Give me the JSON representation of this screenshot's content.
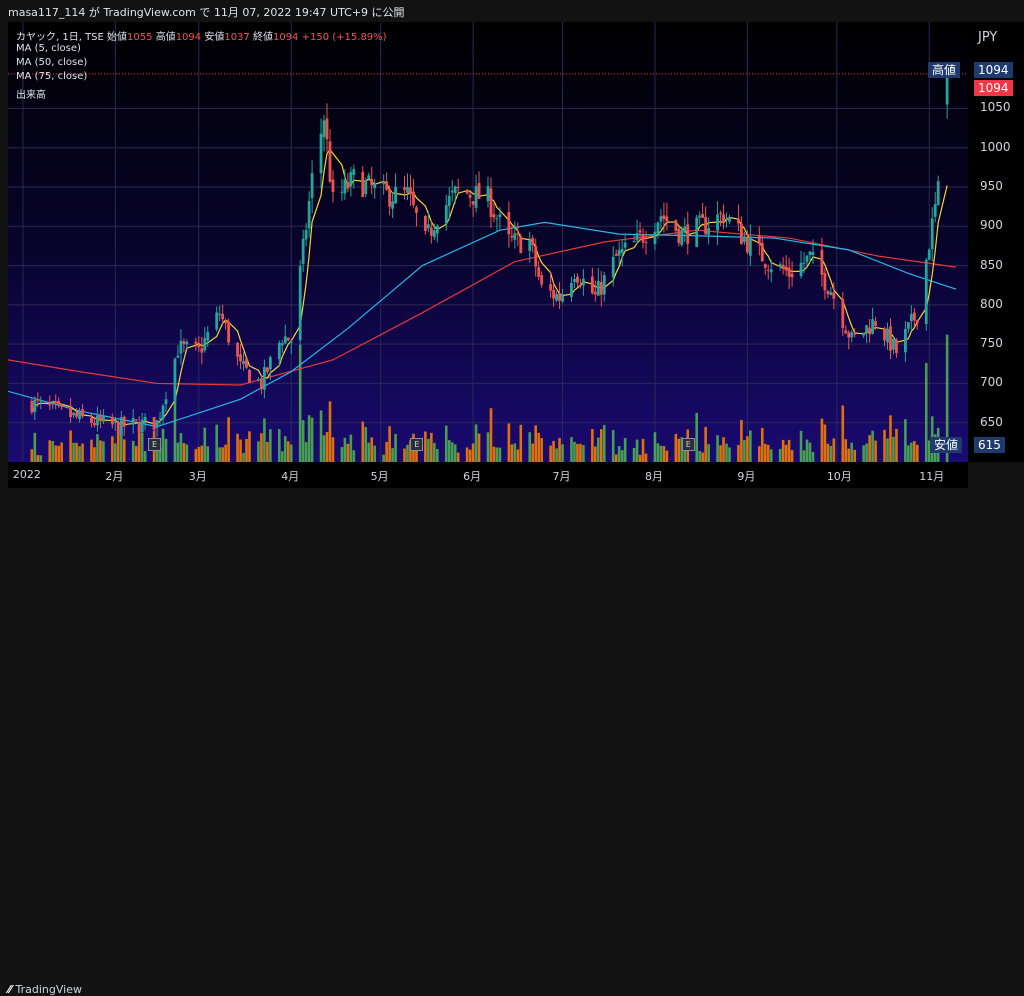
{
  "header": {
    "caption": "masa117_114 が TradingView.com で 11月 07, 2022 19:47 UTC+9 に公開"
  },
  "legend": {
    "symbol": "カヤック, 1日, TSE",
    "open_label": "始値",
    "open": "1055",
    "high_label": "高値",
    "high": "1094",
    "low_label": "安値",
    "low": "1037",
    "close_label": "終値",
    "close": "1094",
    "change": "+150 (+15.89%)",
    "ma5": "MA (5, close)",
    "ma50": "MA (50, close)",
    "ma75": "MA (75, close)",
    "volume": "出来高"
  },
  "currency": "JPY",
  "tags": {
    "high_label": "高値",
    "high_value": "1094",
    "last_value": "1094",
    "low_label": "安値",
    "low_value": "615"
  },
  "footer": {
    "brand": "TradingView"
  },
  "colors": {
    "up": "#26a69a",
    "down": "#ef5350",
    "ma5": "#f5d631",
    "ma50": "#29b6e8",
    "ma75": "#e53935",
    "vol_up": "#4caf50",
    "vol_down": "#f57c00",
    "price_tag": "#f23645",
    "label_tag": "#1f3a6d"
  },
  "chart_data": {
    "type": "candlestick",
    "title": "カヤック, 1日, TSE",
    "y_axis": {
      "ticks": [
        650,
        700,
        750,
        800,
        850,
        900,
        950,
        1000,
        1050
      ],
      "ylim": [
        600,
        1160
      ]
    },
    "x_axis": {
      "tick_labels": [
        "2022",
        "2月",
        "3月",
        "4月",
        "5月",
        "6月",
        "7月",
        "8月",
        "9月",
        "10月",
        "11月"
      ],
      "range": [
        "2021-12-27",
        "2022-11-14"
      ]
    },
    "tick_dates": [
      "2022-01-01",
      "2022-02-01",
      "2022-03-01",
      "2022-04-01",
      "2022-05-01",
      "2022-06-01",
      "2022-07-01",
      "2022-08-01",
      "2022-09-01",
      "2022-10-01",
      "2022-11-01"
    ],
    "earnings_dates": [
      "2022-02-14",
      "2022-05-13",
      "2022-08-12"
    ],
    "earnings_label": "E",
    "close_keypoints": [
      [
        "2022-01-04",
        675
      ],
      [
        "2022-01-20",
        655
      ],
      [
        "2022-02-01",
        645
      ],
      [
        "2022-02-15",
        650
      ],
      [
        "2022-02-22",
        745
      ],
      [
        "2022-03-01",
        740
      ],
      [
        "2022-03-08",
        790
      ],
      [
        "2022-03-15",
        720
      ],
      [
        "2022-03-22",
        700
      ],
      [
        "2022-03-29",
        760
      ],
      [
        "2022-04-01",
        755
      ],
      [
        "2022-04-05",
        870
      ],
      [
        "2022-04-08",
        960
      ],
      [
        "2022-04-12",
        1040
      ],
      [
        "2022-04-15",
        930
      ],
      [
        "2022-04-22",
        960
      ],
      [
        "2022-05-02",
        940
      ],
      [
        "2022-05-10",
        940
      ],
      [
        "2022-05-16",
        880
      ],
      [
        "2022-05-20",
        915
      ],
      [
        "2022-05-27",
        945
      ],
      [
        "2022-06-06",
        935
      ],
      [
        "2022-06-13",
        880
      ],
      [
        "2022-06-20",
        880
      ],
      [
        "2022-06-24",
        820
      ],
      [
        "2022-06-30",
        810
      ],
      [
        "2022-07-05",
        845
      ],
      [
        "2022-07-12",
        810
      ],
      [
        "2022-07-19",
        860
      ],
      [
        "2022-07-26",
        880
      ],
      [
        "2022-08-03",
        915
      ],
      [
        "2022-08-10",
        890
      ],
      [
        "2022-08-17",
        900
      ],
      [
        "2022-08-24",
        915
      ],
      [
        "2022-09-01",
        880
      ],
      [
        "2022-09-08",
        855
      ],
      [
        "2022-09-15",
        840
      ],
      [
        "2022-09-22",
        860
      ],
      [
        "2022-09-29",
        820
      ],
      [
        "2022-10-06",
        755
      ],
      [
        "2022-10-14",
        780
      ],
      [
        "2022-10-21",
        740
      ],
      [
        "2022-10-28",
        790
      ],
      [
        "2022-11-01",
        880
      ],
      [
        "2022-11-04",
        944
      ],
      [
        "2022-11-07",
        1094
      ]
    ],
    "ma50_keypoints": [
      [
        "2021-12-27",
        690
      ],
      [
        "2022-01-20",
        665
      ],
      [
        "2022-02-15",
        645
      ],
      [
        "2022-03-15",
        680
      ],
      [
        "2022-04-01",
        715
      ],
      [
        "2022-04-20",
        770
      ],
      [
        "2022-05-15",
        850
      ],
      [
        "2022-06-10",
        895
      ],
      [
        "2022-06-25",
        905
      ],
      [
        "2022-07-20",
        890
      ],
      [
        "2022-08-15",
        888
      ],
      [
        "2022-09-10",
        885
      ],
      [
        "2022-10-05",
        870
      ],
      [
        "2022-10-25",
        840
      ],
      [
        "2022-11-10",
        820
      ]
    ],
    "ma75_keypoints": [
      [
        "2021-12-27",
        730
      ],
      [
        "2022-01-20",
        715
      ],
      [
        "2022-02-15",
        700
      ],
      [
        "2022-03-15",
        698
      ],
      [
        "2022-04-15",
        730
      ],
      [
        "2022-05-15",
        790
      ],
      [
        "2022-06-15",
        855
      ],
      [
        "2022-07-15",
        880
      ],
      [
        "2022-08-15",
        895
      ],
      [
        "2022-09-15",
        885
      ],
      [
        "2022-10-15",
        862
      ],
      [
        "2022-11-10",
        848
      ]
    ],
    "volume_scale": 615
  }
}
